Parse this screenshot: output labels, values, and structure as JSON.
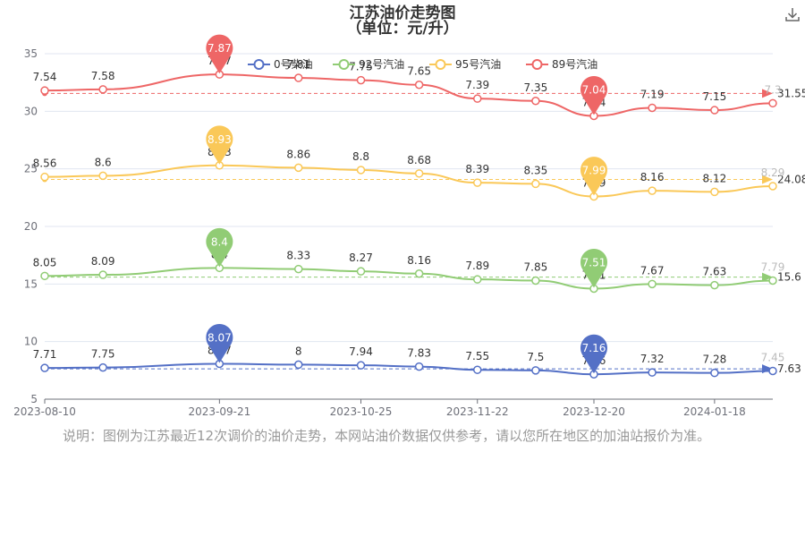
{
  "title": "江苏油价走势图",
  "subtitle": "（单位：元/升）",
  "note": "说明：图例为江苏最近12次调价的油价走势，本网站油价数据仅供参考，请以您所在地区的加油站报价为准。",
  "toolbar": {
    "download_icon": "download-icon"
  },
  "chart_data": {
    "type": "line",
    "x": [
      "2023-08-10",
      "2023-08-24",
      "2023-09-21",
      "2023-10-10",
      "2023-10-25",
      "2023-11-08",
      "2023-11-22",
      "2023-12-06",
      "2023-12-20",
      "2024-01-03",
      "2024-01-18",
      "2024-02-01"
    ],
    "x_tick_labels": [
      "2023-08-10",
      "2023-09-21",
      "2023-10-25",
      "2023-11-22",
      "2023-12-20",
      "2024-01-18"
    ],
    "ylim": [
      5,
      35
    ],
    "y_ticks": [
      5,
      10,
      15,
      20,
      25,
      30,
      35
    ],
    "grid": true,
    "legend_position": "top-right",
    "series": [
      {
        "name": "0号柴油",
        "color": "#5470c6",
        "values": [
          7.71,
          7.75,
          8.07,
          8.0,
          7.94,
          7.83,
          7.55,
          7.5,
          7.16,
          7.32,
          7.28,
          7.45
        ],
        "y_values": [
          7.71,
          7.75,
          8.07,
          8.0,
          7.94,
          7.83,
          7.55,
          7.5,
          7.16,
          7.32,
          7.28,
          7.45
        ],
        "max_label": "8.07",
        "min_label": "7.16",
        "average_label": "7.63",
        "average": 7.63
      },
      {
        "name": "92号汽油",
        "color": "#91cc75",
        "values": [
          8.05,
          8.09,
          8.4,
          8.33,
          8.27,
          8.16,
          7.89,
          7.85,
          7.51,
          7.67,
          7.63,
          7.79
        ],
        "y_values": [
          15.7,
          15.8,
          16.4,
          16.3,
          16.1,
          15.9,
          15.4,
          15.3,
          14.6,
          15.0,
          14.9,
          15.3
        ],
        "max_label": "8.4",
        "min_label": "7.51",
        "average_label": "15.6",
        "average": 15.6
      },
      {
        "name": "95号汽油",
        "color": "#fac858",
        "values": [
          8.56,
          8.6,
          8.93,
          8.86,
          8.8,
          8.68,
          8.39,
          8.35,
          7.99,
          8.16,
          8.12,
          8.29
        ],
        "y_values": [
          24.3,
          24.4,
          25.3,
          25.1,
          24.9,
          24.6,
          23.8,
          23.7,
          22.6,
          23.1,
          23.0,
          23.5
        ],
        "max_label": "8.93",
        "min_label": "7.99",
        "average_label": "24.08",
        "average": 24.08
      },
      {
        "name": "89号汽油",
        "color": "#ee6666",
        "values": [
          7.54,
          7.58,
          7.87,
          7.81,
          7.75,
          7.65,
          7.39,
          7.35,
          7.04,
          7.19,
          7.15,
          7.3
        ],
        "y_values": [
          31.8,
          31.9,
          33.2,
          32.9,
          32.7,
          32.3,
          31.1,
          30.9,
          29.6,
          30.3,
          30.1,
          30.7
        ],
        "max_label": "7.87",
        "min_label": "7.04",
        "average_label": "31.55",
        "average": 31.55
      }
    ]
  }
}
